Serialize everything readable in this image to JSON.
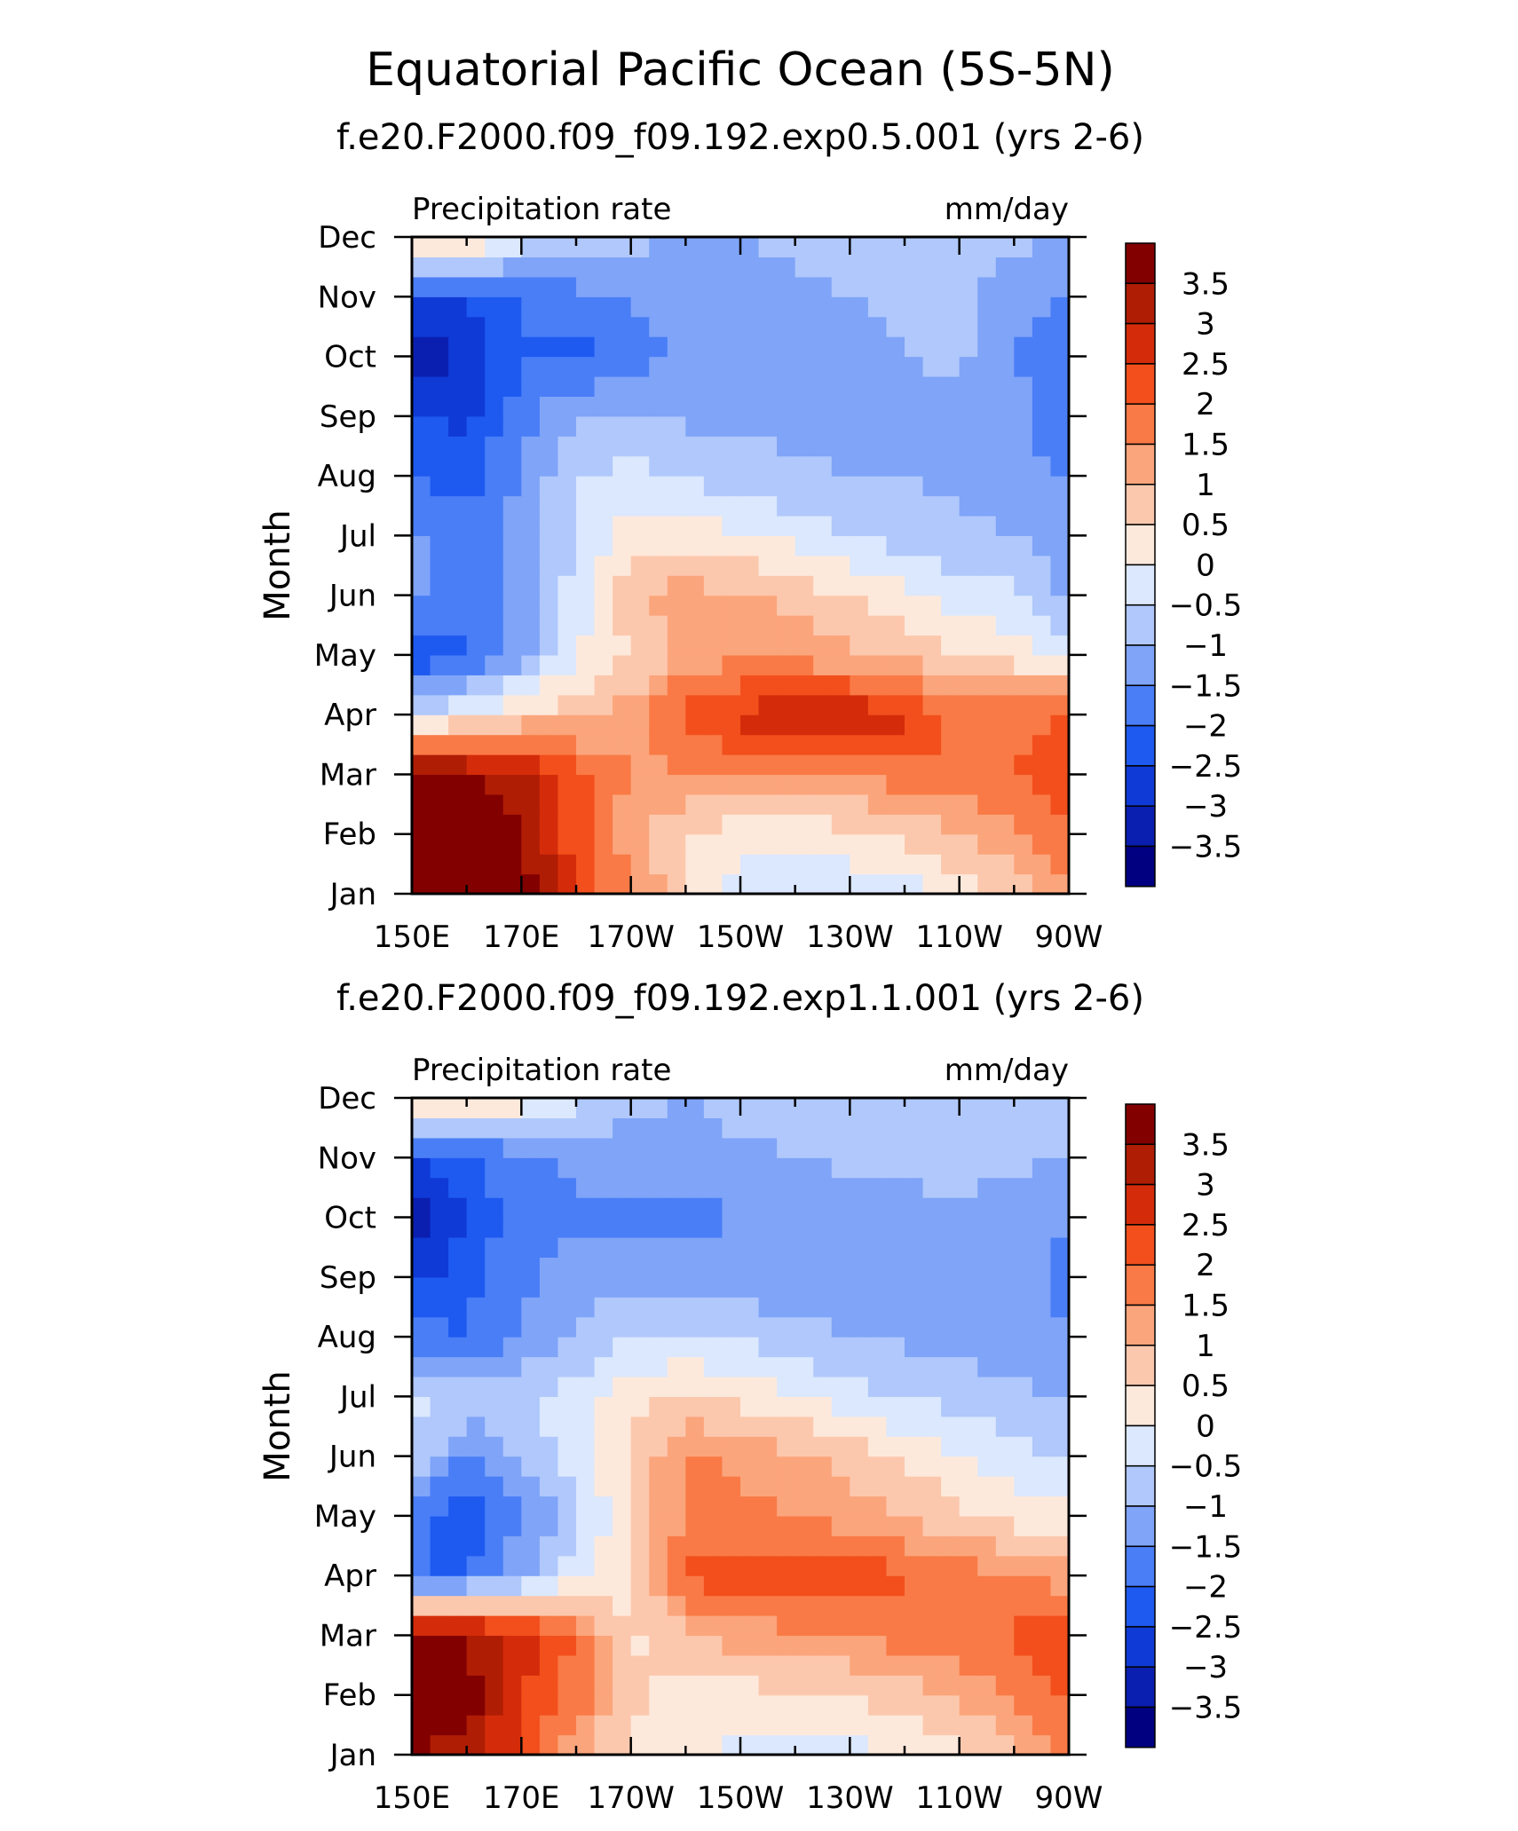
{
  "page_title": "Equatorial Pacific Ocean (5S-5N)",
  "chart_data": [
    {
      "type": "heatmap",
      "title": "f.e20.F2000.f09_f09.192.exp0.5.001 (yrs 2-6)",
      "left_label": "Precipitation rate",
      "right_label": "mm/day",
      "ylabel": "Month",
      "x_ticks": [
        "150E",
        "170E",
        "170W",
        "150W",
        "130W",
        "110W",
        "90W"
      ],
      "y_ticks": [
        "Jan",
        "Feb",
        "Mar",
        "Apr",
        "May",
        "Jun",
        "Jul",
        "Aug",
        "Sep",
        "Oct",
        "Nov",
        "Dec"
      ],
      "x_grid": [
        150,
        160,
        170,
        180,
        190,
        200,
        210,
        220,
        230,
        240,
        250,
        260,
        270
      ],
      "values": [
        [
          3.9,
          3.9,
          3.8,
          2.5,
          1.5,
          0.6,
          -0.2,
          -0.4,
          -0.3,
          -0.2,
          0.2,
          0.6,
          1.5
        ],
        [
          3.9,
          3.9,
          3.6,
          2.2,
          1.2,
          0.5,
          0.2,
          0.2,
          0.3,
          0.6,
          1.0,
          1.4,
          2.0
        ],
        [
          3.8,
          3.6,
          3.2,
          2.2,
          1.5,
          1.4,
          1.5,
          1.5,
          1.6,
          1.8,
          1.9,
          2.0,
          2.4
        ],
        [
          -0.5,
          0.0,
          0.6,
          0.8,
          1.2,
          2.1,
          2.7,
          2.9,
          2.9,
          2.6,
          1.9,
          1.8,
          2.0
        ],
        [
          -2.4,
          -2.0,
          -1.4,
          0.0,
          0.5,
          1.2,
          1.3,
          1.3,
          1.1,
          0.9,
          0.5,
          0.2,
          0.0
        ],
        [
          -1.2,
          -2.0,
          -1.3,
          -0.3,
          0.9,
          1.2,
          1.1,
          0.8,
          0.5,
          0.1,
          -0.2,
          -0.4,
          -1.2
        ],
        [
          -1.3,
          -1.9,
          -1.3,
          -0.4,
          0.2,
          0.3,
          0.0,
          -0.2,
          -0.5,
          -0.7,
          -0.9,
          -1.0,
          -1.2
        ],
        [
          -2.1,
          -2.2,
          -1.4,
          -0.5,
          -0.3,
          -0.6,
          -0.8,
          -0.9,
          -1.0,
          -1.0,
          -1.1,
          -1.3,
          -1.6
        ],
        [
          -2.5,
          -2.6,
          -1.7,
          -1.0,
          -1.0,
          -1.1,
          -1.1,
          -1.2,
          -1.2,
          -1.1,
          -1.1,
          -1.4,
          -1.7
        ],
        [
          -3.3,
          -3.0,
          -2.0,
          -2.2,
          -1.7,
          -1.4,
          -1.4,
          -1.3,
          -1.2,
          -1.0,
          -0.9,
          -1.5,
          -1.8
        ],
        [
          -2.5,
          -2.4,
          -2.0,
          -1.7,
          -1.5,
          -1.3,
          -1.2,
          -1.1,
          -1.0,
          -0.9,
          -0.9,
          -1.3,
          -1.6
        ],
        [
          0.7,
          0.8,
          -0.2,
          -0.6,
          -0.8,
          -1.1,
          -1.0,
          -0.9,
          -0.8,
          -0.8,
          -0.8,
          -0.9,
          -1.0
        ]
      ]
    },
    {
      "type": "heatmap",
      "title": "f.e20.F2000.f09_f09.192.exp1.1.001 (yrs 2-6)",
      "left_label": "Precipitation rate",
      "right_label": "mm/day",
      "ylabel": "Month",
      "x_ticks": [
        "150E",
        "170E",
        "170W",
        "150W",
        "130W",
        "110W",
        "90W"
      ],
      "y_ticks": [
        "Jan",
        "Feb",
        "Mar",
        "Apr",
        "May",
        "Jun",
        "Jul",
        "Aug",
        "Sep",
        "Oct",
        "Nov",
        "Dec"
      ],
      "x_grid": [
        150,
        160,
        170,
        180,
        190,
        200,
        210,
        220,
        230,
        240,
        250,
        260,
        270
      ],
      "values": [
        [
          3.6,
          3.2,
          2.3,
          1.2,
          0.3,
          0.1,
          -0.2,
          -0.3,
          -0.2,
          0.0,
          0.4,
          0.8,
          1.6
        ],
        [
          3.9,
          3.8,
          2.6,
          1.8,
          0.6,
          0.3,
          0.3,
          0.4,
          0.5,
          0.8,
          1.1,
          1.5,
          2.2
        ],
        [
          3.8,
          3.5,
          2.8,
          1.9,
          0.4,
          0.9,
          1.2,
          1.4,
          1.5,
          1.7,
          1.9,
          2.1,
          2.6
        ],
        [
          -2.0,
          -2.0,
          -1.2,
          0.0,
          0.3,
          2.1,
          2.3,
          2.4,
          2.4,
          2.1,
          1.8,
          1.6,
          1.2
        ],
        [
          -1.8,
          -2.4,
          -1.5,
          -0.7,
          0.6,
          1.5,
          1.6,
          1.5,
          1.2,
          1.0,
          0.6,
          0.3,
          0.1
        ],
        [
          -0.6,
          -1.6,
          -0.9,
          -0.2,
          0.6,
          1.6,
          1.4,
          1.1,
          0.8,
          0.4,
          0.0,
          -0.3,
          -0.6
        ],
        [
          -0.2,
          -0.6,
          -0.7,
          -0.2,
          0.3,
          0.6,
          0.3,
          0.0,
          -0.3,
          -0.5,
          -0.7,
          -0.9,
          -1.0
        ],
        [
          -1.8,
          -2.0,
          -1.4,
          -1.0,
          -0.4,
          -0.5,
          -0.6,
          -0.8,
          -1.0,
          -1.1,
          -1.2,
          -1.3,
          -1.5
        ],
        [
          -2.7,
          -2.2,
          -1.6,
          -1.3,
          -1.2,
          -1.3,
          -1.3,
          -1.4,
          -1.5,
          -1.3,
          -1.2,
          -1.4,
          -1.6
        ],
        [
          -3.3,
          -2.6,
          -1.6,
          -1.6,
          -1.6,
          -1.7,
          -1.5,
          -1.4,
          -1.3,
          -1.2,
          -1.1,
          -1.3,
          -1.5
        ],
        [
          -2.4,
          -2.2,
          -1.6,
          -1.4,
          -1.3,
          -1.2,
          -1.1,
          -1.0,
          -0.9,
          -0.9,
          -0.8,
          -0.9,
          -1.0
        ],
        [
          0.6,
          0.7,
          0.3,
          -0.3,
          -0.8,
          -1.0,
          -0.8,
          -0.8,
          -0.8,
          -0.7,
          -0.7,
          -0.6,
          -0.6
        ]
      ]
    }
  ],
  "colorbar": {
    "labels": [
      "3.5",
      "3",
      "2.5",
      "2",
      "1.5",
      "1",
      "0.5",
      "0",
      "-0.5",
      "-1",
      "-1.5",
      "-2",
      "-2.5",
      "-3",
      "-3.5"
    ],
    "levels": [
      -3.5,
      -3,
      -2.5,
      -2,
      -1.5,
      -1,
      -0.5,
      0,
      0.5,
      1,
      1.5,
      2,
      2.5,
      3,
      3.5
    ],
    "colors": [
      "#000080",
      "#0a1fb0",
      "#0f3ad6",
      "#1e5af0",
      "#4a7ef7",
      "#7fa4f8",
      "#b0c8fb",
      "#dbe8fd",
      "#fde9dc",
      "#fcc8ad",
      "#fba57c",
      "#f97a46",
      "#f24f1c",
      "#d42c0a",
      "#b01d05",
      "#820000"
    ]
  }
}
